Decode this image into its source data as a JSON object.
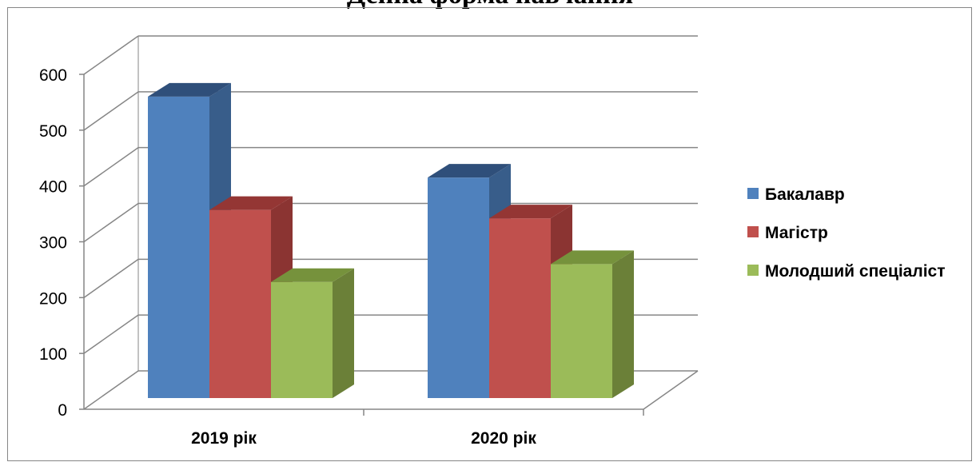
{
  "chart_data": {
    "type": "bar",
    "title": "Денна форма навчання",
    "categories": [
      "2019 рік",
      "2020 рік"
    ],
    "series": [
      {
        "name": "Бакалавр",
        "values": [
          540,
          395
        ],
        "color": "#4F81BD",
        "side": "#385D8A",
        "top": "#2F4F7A"
      },
      {
        "name": "Магістр",
        "values": [
          337,
          322
        ],
        "color": "#C0504D",
        "side": "#8B3432",
        "top": "#943634"
      },
      {
        "name": "Молодший спеціаліст",
        "values": [
          208,
          240
        ],
        "color": "#9BBB59",
        "side": "#6B8038",
        "top": "#76923C"
      }
    ],
    "ylim": [
      0,
      600
    ],
    "yticks": [
      0,
      100,
      200,
      300,
      400,
      500,
      600
    ],
    "grid": true,
    "legend": "right"
  }
}
